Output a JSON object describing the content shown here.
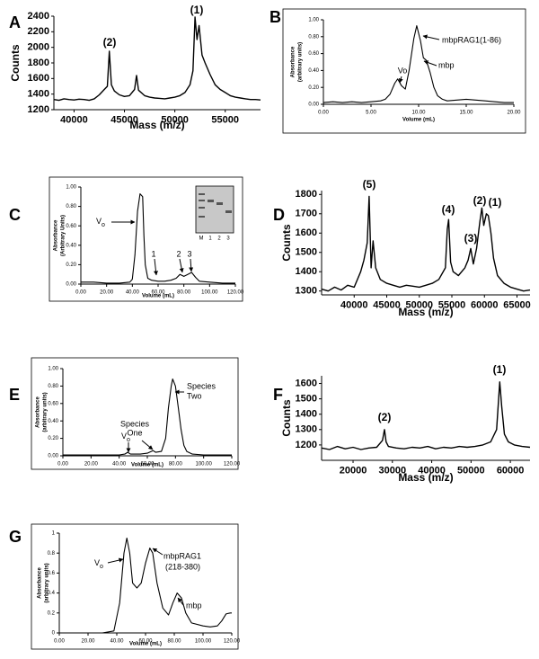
{
  "chart_data": [
    {
      "panel": "A",
      "type": "line",
      "color": "#000000",
      "xlabel": "Mass (m/z)",
      "ylabel": [
        "Counts"
      ],
      "x": [
        38000,
        38500,
        39000,
        39500,
        40000,
        40500,
        41000,
        41500,
        42000,
        42500,
        43000,
        43300,
        43500,
        43700,
        44000,
        44500,
        45000,
        45500,
        46000,
        46200,
        46400,
        47000,
        47500,
        48000,
        48500,
        49000,
        49500,
        50000,
        50500,
        51000,
        51500,
        51800,
        52000,
        52200,
        52400,
        52700,
        53000,
        53500,
        54000,
        54500,
        55000,
        55500,
        56000,
        56500,
        57000,
        57500,
        58000,
        58500
      ],
      "values": [
        1330,
        1320,
        1340,
        1330,
        1325,
        1335,
        1330,
        1320,
        1340,
        1390,
        1460,
        1500,
        1950,
        1520,
        1440,
        1390,
        1370,
        1380,
        1460,
        1640,
        1450,
        1380,
        1360,
        1350,
        1345,
        1340,
        1350,
        1360,
        1380,
        1420,
        1520,
        1700,
        2390,
        2100,
        2280,
        1900,
        1800,
        1650,
        1520,
        1460,
        1420,
        1380,
        1360,
        1350,
        1340,
        1330,
        1330,
        1325
      ],
      "xlim": [
        38000,
        58500
      ],
      "ylim": [
        1200,
        2400
      ],
      "xticks": [
        40000,
        45000,
        50000,
        55000
      ],
      "yticks": [
        1200,
        1400,
        1600,
        1800,
        2000,
        2200,
        2400
      ],
      "annotations": [
        "(2)",
        "(1)"
      ]
    },
    {
      "panel": "B",
      "type": "line",
      "color": "#000000",
      "xlabel": "Volume (mL)",
      "ylabel": [
        "Absorbance",
        "(arbitrary units)"
      ],
      "x": [
        0,
        1,
        2,
        3,
        4,
        5,
        6,
        6.5,
        7,
        7.5,
        7.8,
        8.2,
        8.6,
        9,
        9.5,
        9.8,
        10.2,
        10.5,
        10.8,
        11.2,
        11.6,
        12,
        12.5,
        13,
        14,
        15,
        16,
        17,
        18,
        19,
        20
      ],
      "values": [
        0.02,
        0.03,
        0.02,
        0.03,
        0.02,
        0.03,
        0.04,
        0.06,
        0.12,
        0.25,
        0.3,
        0.22,
        0.18,
        0.4,
        0.78,
        0.93,
        0.75,
        0.55,
        0.52,
        0.38,
        0.2,
        0.1,
        0.06,
        0.04,
        0.05,
        0.06,
        0.05,
        0.04,
        0.03,
        0.02,
        0.02
      ],
      "xlim": [
        0,
        20
      ],
      "ylim": [
        0,
        1
      ],
      "xticks": [
        {
          "value": 0,
          "label": "0.00"
        },
        {
          "value": 5,
          "label": "5.00"
        },
        {
          "value": 10,
          "label": "10.00"
        },
        {
          "value": 15,
          "label": "15.00"
        },
        {
          "value": 20,
          "label": "20.00"
        }
      ],
      "yticks": [
        {
          "value": 0,
          "label": "0.00"
        },
        {
          "value": 0.2,
          "label": "0.20"
        },
        {
          "value": 0.4,
          "label": "0.40"
        },
        {
          "value": 0.6,
          "label": "0.60"
        },
        {
          "value": 0.8,
          "label": "0.80"
        },
        {
          "value": 1,
          "label": "1.00"
        }
      ],
      "annotations": [
        "mbpRAG1(1-86)",
        "Vo",
        "mbp"
      ]
    },
    {
      "panel": "C",
      "type": "line",
      "color": "#000000",
      "xlabel": "Volume (mL)",
      "ylabel": [
        "Absorbance",
        "(Arbitrary Units)"
      ],
      "x": [
        0,
        10,
        20,
        30,
        38,
        40,
        42,
        44,
        46,
        48,
        49,
        50,
        52,
        55,
        60,
        65,
        70,
        74,
        77,
        80,
        83,
        86,
        89,
        92,
        100,
        110,
        120
      ],
      "values": [
        0.02,
        0.02,
        0.01,
        0.01,
        0.02,
        0.05,
        0.3,
        0.75,
        0.93,
        0.9,
        0.5,
        0.2,
        0.06,
        0.04,
        0.03,
        0.03,
        0.04,
        0.06,
        0.1,
        0.08,
        0.1,
        0.12,
        0.07,
        0.03,
        0.02,
        0.01,
        0.01
      ],
      "xlim": [
        0,
        120
      ],
      "ylim": [
        0,
        1
      ],
      "xticks": [
        {
          "value": 0,
          "label": "0.00"
        },
        {
          "value": 20,
          "label": "20.00"
        },
        {
          "value": 40,
          "label": "40.00"
        },
        {
          "value": 60,
          "label": "60.00"
        },
        {
          "value": 80,
          "label": "80.00"
        },
        {
          "value": 100,
          "label": "100.00"
        },
        {
          "value": 120,
          "label": "120.00"
        }
      ],
      "yticks": [
        {
          "value": 0,
          "label": "0.00"
        },
        {
          "value": 0.2,
          "label": "0.20"
        },
        {
          "value": 0.4,
          "label": "0.40"
        },
        {
          "value": 0.6,
          "label": "0.60"
        },
        {
          "value": 0.8,
          "label": "0.80"
        },
        {
          "value": 1,
          "label": "1.00"
        }
      ],
      "annotations": [
        {
          "text": "V",
          "subscript": "o"
        },
        "1",
        "2",
        "3"
      ],
      "inset_labels": [
        "M",
        "1",
        "2",
        "3"
      ]
    },
    {
      "panel": "D",
      "type": "line",
      "color": "#000000",
      "xlabel": "Mass (m/z)",
      "ylabel": [
        "Counts"
      ],
      "x": [
        35000,
        36000,
        37000,
        38000,
        39000,
        40000,
        41000,
        41500,
        42000,
        42300,
        42600,
        42900,
        43300,
        44000,
        45000,
        46000,
        47000,
        48000,
        49000,
        50000,
        51000,
        52000,
        53000,
        54000,
        54300,
        54500,
        54800,
        55200,
        56000,
        57000,
        57500,
        57900,
        58300,
        58800,
        59300,
        59600,
        59900,
        60300,
        60600,
        61000,
        61400,
        62000,
        63000,
        64000,
        65000,
        66000,
        67000
      ],
      "values": [
        1310,
        1300,
        1320,
        1305,
        1330,
        1320,
        1400,
        1460,
        1550,
        1790,
        1420,
        1560,
        1420,
        1360,
        1340,
        1330,
        1320,
        1330,
        1325,
        1320,
        1330,
        1340,
        1360,
        1420,
        1620,
        1670,
        1450,
        1400,
        1380,
        1420,
        1460,
        1520,
        1440,
        1520,
        1660,
        1730,
        1640,
        1700,
        1690,
        1600,
        1470,
        1380,
        1340,
        1320,
        1310,
        1300,
        1305
      ],
      "xlim": [
        35000,
        67000
      ],
      "ylim": [
        1280,
        1820
      ],
      "xticks": [
        40000,
        45000,
        50000,
        55000,
        60000,
        65000
      ],
      "yticks": [
        1300,
        1400,
        1500,
        1600,
        1700,
        1800
      ],
      "annotations": [
        "(5)",
        "(4)",
        "(3)",
        "(2)",
        "(1)"
      ]
    },
    {
      "panel": "E",
      "type": "line",
      "color": "#000000",
      "xlabel": "Volume (mL)",
      "ylabel": [
        "Absorbance",
        "(arbitrary units)"
      ],
      "x": [
        0,
        20,
        40,
        44,
        46,
        48,
        55,
        60,
        64,
        66,
        70,
        73,
        75,
        77,
        78,
        80,
        82,
        84,
        86,
        88,
        92,
        100,
        120
      ],
      "values": [
        0.01,
        0.01,
        0.01,
        0.02,
        0.04,
        0.02,
        0.02,
        0.03,
        0.06,
        0.04,
        0.05,
        0.2,
        0.55,
        0.8,
        0.88,
        0.8,
        0.55,
        0.3,
        0.12,
        0.05,
        0.02,
        0.01,
        0.01
      ],
      "xlim": [
        0,
        120
      ],
      "ylim": [
        0,
        1
      ],
      "xticks": [
        {
          "value": 0,
          "label": "0.00"
        },
        {
          "value": 20,
          "label": "20.00"
        },
        {
          "value": 40,
          "label": "40.00"
        },
        {
          "value": 60,
          "label": "60.00"
        },
        {
          "value": 80,
          "label": "80.00"
        },
        {
          "value": 100,
          "label": "100.00"
        },
        {
          "value": 120,
          "label": "120.00"
        }
      ],
      "yticks": [
        {
          "value": 0,
          "label": "0.00"
        },
        {
          "value": 0.2,
          "label": "0.20"
        },
        {
          "value": 0.4,
          "label": "0.40"
        },
        {
          "value": 0.6,
          "label": "0.60"
        },
        {
          "value": 0.8,
          "label": "0.80"
        },
        {
          "value": 1,
          "label": "1.00"
        }
      ],
      "annotations": [
        "Species",
        "Two",
        "Species",
        "One",
        {
          "text": "V",
          "subscript": "o"
        }
      ]
    },
    {
      "panel": "F",
      "type": "line",
      "color": "#000000",
      "xlabel": "Mass (m/z)",
      "ylabel": [
        "Counts"
      ],
      "x": [
        12000,
        14000,
        16000,
        18000,
        20000,
        22000,
        24000,
        26000,
        27500,
        28000,
        28400,
        29000,
        31000,
        33000,
        35000,
        37000,
        39000,
        41000,
        43000,
        45000,
        47000,
        49000,
        51000,
        53000,
        55000,
        56500,
        57300,
        57800,
        58500,
        59500,
        61000,
        63000,
        65000
      ],
      "values": [
        1180,
        1170,
        1190,
        1175,
        1185,
        1170,
        1180,
        1185,
        1230,
        1300,
        1220,
        1190,
        1180,
        1175,
        1185,
        1180,
        1190,
        1175,
        1185,
        1180,
        1190,
        1185,
        1190,
        1200,
        1220,
        1300,
        1610,
        1450,
        1270,
        1220,
        1200,
        1190,
        1185
      ],
      "xlim": [
        12000,
        65000
      ],
      "ylim": [
        1100,
        1650
      ],
      "xticks": [
        20000,
        30000,
        40000,
        50000,
        60000
      ],
      "yticks": [
        1200,
        1300,
        1400,
        1500,
        1600
      ],
      "annotations": [
        "(2)",
        "(1)"
      ]
    },
    {
      "panel": "G",
      "type": "line",
      "color": "#000000",
      "xlabel": "Volume (mL)",
      "ylabel": [
        "Absorbance",
        "(arbitrary units)"
      ],
      "x": [
        0,
        10,
        20,
        30,
        38,
        42,
        45,
        47,
        49,
        51,
        54,
        57,
        60,
        63,
        65,
        68,
        72,
        76,
        79,
        82,
        85,
        88,
        92,
        100,
        105,
        110,
        113,
        116,
        119,
        120
      ],
      "values": [
        0,
        0,
        0,
        0,
        0.02,
        0.3,
        0.8,
        0.95,
        0.8,
        0.5,
        0.45,
        0.5,
        0.7,
        0.85,
        0.8,
        0.5,
        0.25,
        0.18,
        0.3,
        0.4,
        0.35,
        0.2,
        0.1,
        0.07,
        0.06,
        0.07,
        0.12,
        0.19,
        0.2,
        0.2
      ],
      "xlim": [
        0,
        120
      ],
      "ylim": [
        0,
        1
      ],
      "xticks": [
        {
          "value": 0,
          "label": "0.00"
        },
        {
          "value": 20,
          "label": "20.00"
        },
        {
          "value": 40,
          "label": "40.00"
        },
        {
          "value": 60,
          "label": "60.00"
        },
        {
          "value": 80,
          "label": "80.00"
        },
        {
          "value": 100,
          "label": "100.00"
        },
        {
          "value": 120,
          "label": "120.00"
        }
      ],
      "yticks": [
        0,
        0.2,
        0.4,
        0.6,
        0.8,
        1
      ],
      "annotations": [
        {
          "text": "V",
          "subscript": "o"
        },
        "mbpRAG1",
        "(218-380)",
        "mbp"
      ]
    }
  ]
}
